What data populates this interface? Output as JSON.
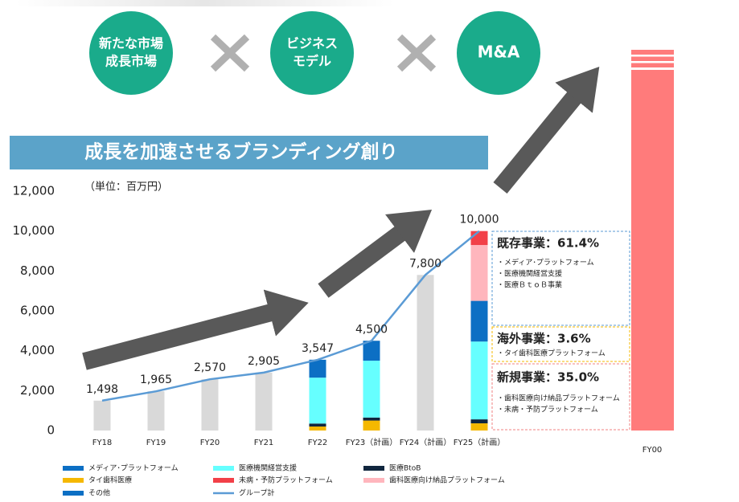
{
  "chart_data": {
    "type": "stacked_bar_line",
    "header": {
      "circles": [
        [
          "新たな市場",
          "成長市場"
        ],
        [
          "ビジネス",
          "モデル"
        ],
        [
          "M&A"
        ]
      ],
      "banner": "成長を加速させるブランディング創り"
    },
    "unit_label": "（単位：百万円）",
    "categories": [
      "FY18",
      "FY19",
      "FY20",
      "FY21",
      "FY22",
      "FY23（計画）",
      "FY24（計画）",
      "FY25（計画）"
    ],
    "ylim": [
      0,
      12000
    ],
    "yticks": [
      0,
      {
        "value": 2000,
        "label": "2,000"
      },
      {
        "value": 4000,
        "label": "4,000"
      },
      {
        "value": 6000,
        "label": "6,000"
      },
      {
        "value": 8000,
        "label": "8,000"
      },
      {
        "value": 10000,
        "label": "10,000"
      },
      {
        "value": 12000,
        "label": "12,000"
      }
    ],
    "series": [
      {
        "name": "タイ歯科医療",
        "color": "#f5b800",
        "values": [
          null,
          null,
          null,
          null,
          200,
          500,
          null,
          360
        ]
      },
      {
        "name": "医療BtoB",
        "color": "#10263e",
        "values": [
          null,
          null,
          null,
          null,
          150,
          150,
          null,
          200
        ]
      },
      {
        "name": "医療機関経営支援",
        "color": "#66ffff",
        "values": [
          null,
          null,
          null,
          null,
          2300,
          2850,
          null,
          3900
        ]
      },
      {
        "name": "メディア･プラットフォーム",
        "color": "#0c6fc4",
        "values": [
          null,
          null,
          null,
          null,
          900,
          1000,
          null,
          2040
        ]
      },
      {
        "name": "歯科医療向け納品プラットフォーム",
        "color": "#ffb6bd",
        "values": [
          null,
          null,
          null,
          null,
          null,
          null,
          null,
          2800
        ]
      },
      {
        "name": "未病・予防プラットフォーム",
        "color": "#f24048",
        "values": [
          null,
          null,
          null,
          null,
          null,
          null,
          null,
          700
        ]
      },
      {
        "name": "その他",
        "color": "#0c6fc4",
        "values": [
          null,
          null,
          null,
          null,
          null,
          null,
          null,
          null
        ]
      }
    ],
    "total": {
      "name": "グループ計",
      "color": "#5b9bd5",
      "bar_color": "#d9d9d9",
      "values": [
        1498,
        1965,
        2570,
        2905,
        3547,
        4500,
        7800,
        10000
      ],
      "value_labels": [
        "1,498",
        "1,965",
        "2,570",
        "2,905",
        "3,547",
        "4,500",
        "7,800",
        "10,000"
      ]
    },
    "legend_order": [
      3,
      2,
      1,
      0,
      5,
      4,
      6
    ],
    "far_bar": {
      "label": "FY00",
      "color": "#ff7b7b"
    },
    "boxes": [
      {
        "heading": "既存事業：61.4%",
        "items": [
          "・メディア･プラットフォーム",
          "・医療機関経営支援",
          "・医療ＢｔｏＢ事業"
        ],
        "color": "#5b9bd5"
      },
      {
        "heading": "海外事業：3.6%",
        "items": [
          "・タイ歯科医療プラットフォーム"
        ],
        "color": "#f5b800"
      },
      {
        "heading": "新規事業：35.0%",
        "items": [
          "・歯科医療向け納品プラットフォーム",
          "・未病・予防プラットフォーム"
        ],
        "color": "#f08080"
      }
    ]
  }
}
